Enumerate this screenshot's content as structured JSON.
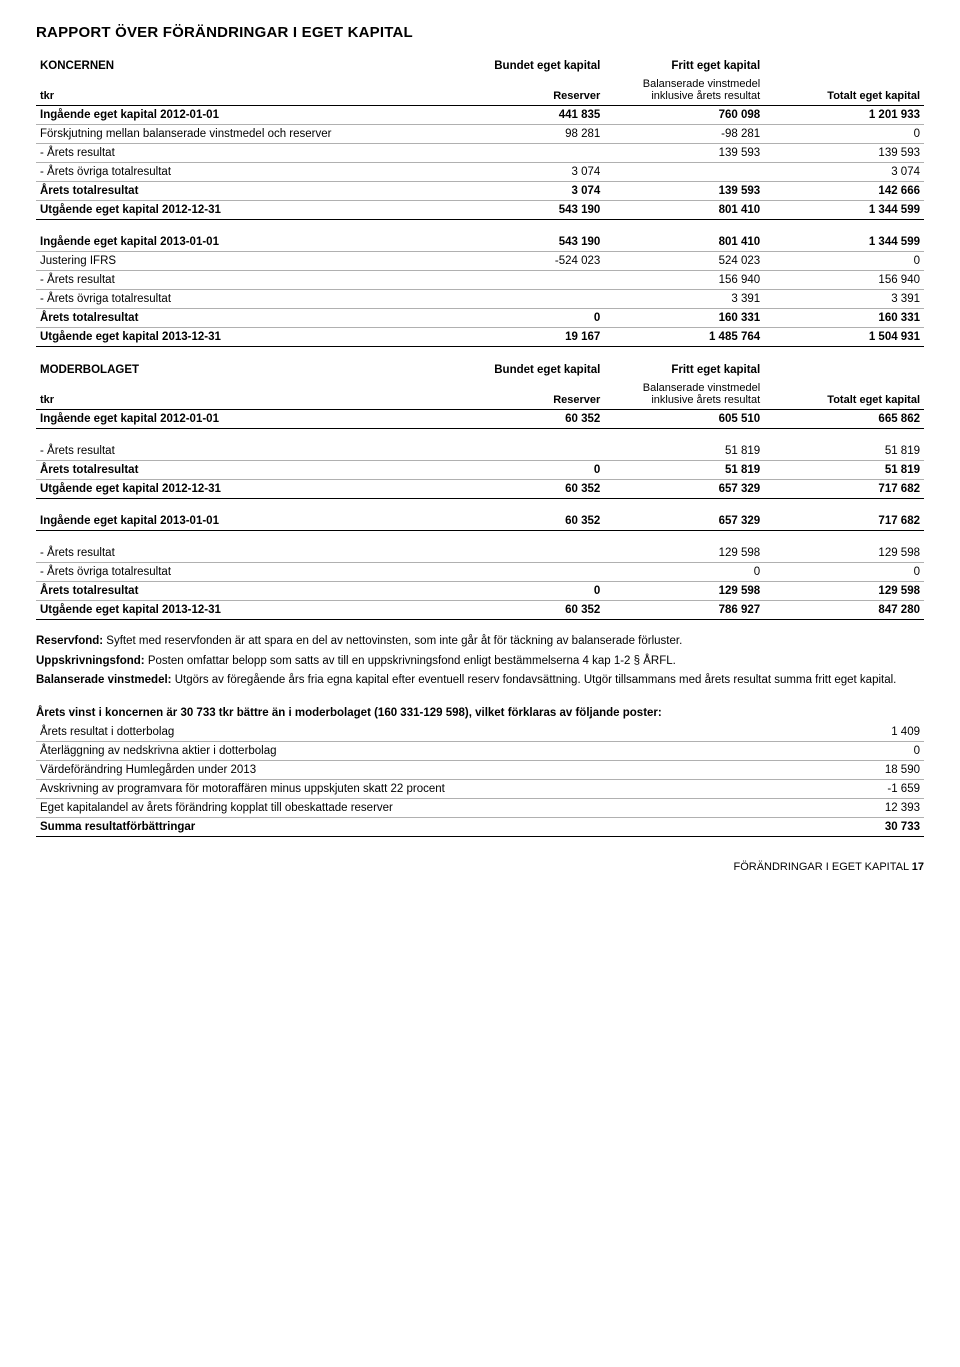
{
  "page_title": "RAPPORT ÖVER FÖRÄNDRINGAR I EGET KAPITAL",
  "koncernen": {
    "title": "KONCERNEN",
    "hdr_bundet": "Bundet eget kapital",
    "hdr_fritt": "Fritt eget kapital",
    "hdr_totalt": "Totalt eget kapital",
    "sub_tkr": "tkr",
    "sub_reserver": "Reserver",
    "sub_balanserade": "Balanserade vinstmedel inklusive årets resultat",
    "rows1": [
      {
        "label": "Ingående eget kapital 2012-01-01",
        "c2": "441 835",
        "c3": "760 098",
        "c4": "1 201 933",
        "bold": true,
        "line": true
      },
      {
        "label": "Förskjutning mellan balanserade vinstmedel och reserver",
        "c2": "98 281",
        "c3": "-98 281",
        "c4": "0",
        "line": true
      },
      {
        "label": " - Årets resultat",
        "c2": "",
        "c3": "139 593",
        "c4": "139 593",
        "line": true
      },
      {
        "label": " - Årets övriga totalresultat",
        "c2": "3 074",
        "c3": "",
        "c4": "3 074",
        "line": true
      },
      {
        "label": "Årets totalresultat",
        "c2": "3 074",
        "c3": "139 593",
        "c4": "142 666",
        "bold": true,
        "line": true
      },
      {
        "label": "Utgående eget kapital 2012-12-31",
        "c2": "543 190",
        "c3": "801 410",
        "c4": "1 344 599",
        "bold": true,
        "heavy": true
      }
    ],
    "rows2": [
      {
        "label": "Ingående eget kapital 2013-01-01",
        "c2": "543 190",
        "c3": "801 410",
        "c4": "1 344 599",
        "bold": true,
        "line": true,
        "space": true
      },
      {
        "label": "Justering IFRS",
        "c2": "-524 023",
        "c3": "524 023",
        "c4": "0",
        "line": true
      },
      {
        "label": " - Årets resultat",
        "c2": "",
        "c3": "156 940",
        "c4": "156 940",
        "line": true
      },
      {
        "label": " - Årets övriga totalresultat",
        "c2": "",
        "c3": "3 391",
        "c4": "3 391",
        "line": true
      },
      {
        "label": "Årets totalresultat",
        "c2": "0",
        "c3": "160 331",
        "c4": "160 331",
        "bold": true,
        "line": true
      },
      {
        "label": "Utgående eget kapital 2013-12-31",
        "c2": "19 167",
        "c3": "1 485 764",
        "c4": "1 504 931",
        "bold": true,
        "heavy": true
      }
    ]
  },
  "moderbolaget": {
    "title": "MODERBOLAGET",
    "hdr_bundet": "Bundet eget kapital",
    "hdr_fritt": "Fritt eget kapital",
    "hdr_totalt": "Totalt eget kapital",
    "sub_tkr": "tkr",
    "sub_reserver": "Reserver",
    "sub_balanserade": "Balanserade vinstmedel inklusive årets resultat",
    "rows1": [
      {
        "label": "Ingående eget kapital 2012-01-01",
        "c2": "60 352",
        "c3": "605 510",
        "c4": "665 862",
        "bold": true,
        "heavy": true
      }
    ],
    "rows2": [
      {
        "label": " - Årets resultat",
        "c2": "",
        "c3": "51 819",
        "c4": "51 819",
        "line": true,
        "space": true
      },
      {
        "label": "Årets totalresultat",
        "c2": "0",
        "c3": "51 819",
        "c4": "51 819",
        "bold": true,
        "line": true
      },
      {
        "label": "Utgående eget kapital 2012-12-31",
        "c2": "60 352",
        "c3": "657 329",
        "c4": "717 682",
        "bold": true,
        "heavy": true
      }
    ],
    "rows3": [
      {
        "label": "Ingående eget kapital 2013-01-01",
        "c2": "60 352",
        "c3": "657 329",
        "c4": "717 682",
        "bold": true,
        "heavy": true,
        "space": true
      }
    ],
    "rows4": [
      {
        "label": " - Årets resultat",
        "c2": "",
        "c3": "129 598",
        "c4": "129 598",
        "line": true,
        "space": true
      },
      {
        "label": " - Årets övriga totalresultat",
        "c2": "",
        "c3": "0",
        "c4": "0",
        "line": true
      },
      {
        "label": "Årets totalresultat",
        "c2": "0",
        "c3": "129 598",
        "c4": "129 598",
        "bold": true,
        "line": true
      },
      {
        "label": "Utgående eget kapital 2013-12-31",
        "c2": "60 352",
        "c3": "786 927",
        "c4": "847 280",
        "bold": true,
        "heavy": true
      }
    ]
  },
  "notes": {
    "p1_l": "Reservfond:",
    "p1": " Syftet med reservfonden är att spara en del av nettovinsten, som inte går åt för täckning av balanserade förluster.",
    "p2_l": "Uppskrivningsfond:",
    "p2": " Posten omfattar belopp som satts av till en uppskrivningsfond enligt bestämmelserna 4 kap 1-2 § ÅRFL.",
    "p3_l": "Balanserade vinstmedel:",
    "p3": " Utgörs av föregående års fria egna kapital efter eventuell reserv fondavsättning. Utgör tillsammans med årets resultat summa fritt eget kapital."
  },
  "explain": {
    "title": "Årets vinst i koncernen är 30 733 tkr bättre än i moderbolaget (160 331-129 598), vilket förklaras av följande poster:",
    "rows": [
      {
        "label": "Årets resultat i dotterbolag",
        "val": "1 409"
      },
      {
        "label": "Återläggning av nedskrivna aktier i dotterbolag",
        "val": "0"
      },
      {
        "label": "Värdeförändring Humlegården under 2013",
        "val": "18 590"
      },
      {
        "label": "Avskrivning av programvara för motoraffären minus uppskjuten skatt 22 procent",
        "val": "-1 659"
      },
      {
        "label": "Eget kapitalandel av årets förändring kopplat till obeskattade reserver",
        "val": "12 393"
      },
      {
        "label": "Summa resultatförbättringar",
        "val": "30 733",
        "bold": true
      }
    ]
  },
  "footer": {
    "label": "FÖRÄNDRINGAR I EGET KAPITAL",
    "page": "17"
  }
}
